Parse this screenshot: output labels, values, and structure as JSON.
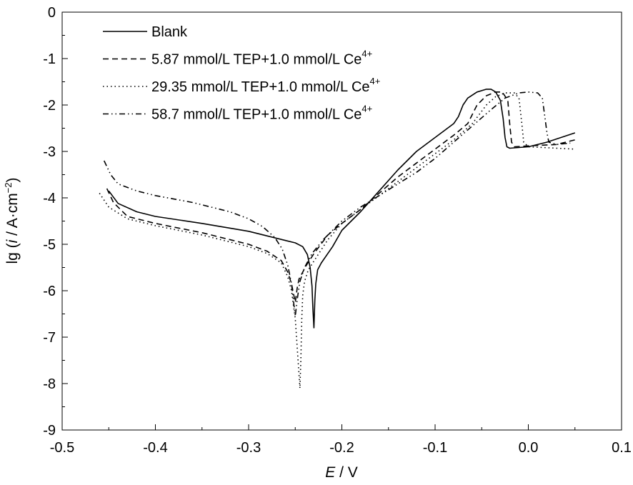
{
  "chart_data": {
    "type": "line",
    "title": "",
    "xlabel_var": "E",
    "xlabel_unit": " / V",
    "ylabel_prefix": "lg (",
    "ylabel_var": "i",
    "ylabel_unit": " / A·cm",
    "ylabel_exp": "−2",
    "ylabel_suffix": ")",
    "xlim": [
      -0.5,
      0.1
    ],
    "ylim": [
      -9,
      0
    ],
    "x_ticks": [
      -0.5,
      -0.4,
      -0.3,
      -0.2,
      -0.1,
      0.0,
      0.1
    ],
    "x_tick_labels": [
      "-0.5",
      "-0.4",
      "-0.3",
      "-0.2",
      "-0.1",
      "0.0",
      "0.1"
    ],
    "y_ticks": [
      0,
      -1,
      -2,
      -3,
      -4,
      -5,
      -6,
      -7,
      -8,
      -9
    ],
    "y_tick_labels": [
      "0",
      "-1",
      "-2",
      "-3",
      "-4",
      "-5",
      "-6",
      "-7",
      "-8",
      "-9"
    ],
    "grid": false,
    "legend_position": "top-left",
    "series": [
      {
        "name": "Blank",
        "name_sup": "",
        "style": "solid",
        "points": [
          [
            -0.45,
            -3.85
          ],
          [
            -0.44,
            -4.12
          ],
          [
            -0.42,
            -4.3
          ],
          [
            -0.4,
            -4.4
          ],
          [
            -0.35,
            -4.55
          ],
          [
            -0.3,
            -4.72
          ],
          [
            -0.28,
            -4.82
          ],
          [
            -0.26,
            -4.92
          ],
          [
            -0.25,
            -4.97
          ],
          [
            -0.242,
            -5.05
          ],
          [
            -0.237,
            -5.22
          ],
          [
            -0.234,
            -5.5
          ],
          [
            -0.232,
            -5.9
          ],
          [
            -0.231,
            -6.4
          ],
          [
            -0.23,
            -6.8
          ],
          [
            -0.229,
            -6.2
          ],
          [
            -0.228,
            -5.85
          ],
          [
            -0.226,
            -5.55
          ],
          [
            -0.222,
            -5.4
          ],
          [
            -0.21,
            -5.05
          ],
          [
            -0.2,
            -4.7
          ],
          [
            -0.18,
            -4.3
          ],
          [
            -0.16,
            -3.85
          ],
          [
            -0.14,
            -3.4
          ],
          [
            -0.12,
            -3.0
          ],
          [
            -0.1,
            -2.7
          ],
          [
            -0.08,
            -2.4
          ],
          [
            -0.075,
            -2.25
          ],
          [
            -0.07,
            -2.0
          ],
          [
            -0.065,
            -1.85
          ],
          [
            -0.055,
            -1.72
          ],
          [
            -0.045,
            -1.66
          ],
          [
            -0.04,
            -1.66
          ],
          [
            -0.035,
            -1.72
          ],
          [
            -0.03,
            -1.9
          ],
          [
            -0.027,
            -2.3
          ],
          [
            -0.025,
            -2.7
          ],
          [
            -0.023,
            -2.9
          ],
          [
            -0.02,
            -2.93
          ],
          [
            0.0,
            -2.9
          ],
          [
            0.02,
            -2.8
          ],
          [
            0.05,
            -2.6
          ]
        ]
      },
      {
        "name": "5.87 mmol/L TEP+1.0 mmol/L Ce",
        "name_sup": "4+",
        "style": "dashed",
        "points": [
          [
            -0.452,
            -3.8
          ],
          [
            -0.445,
            -4.1
          ],
          [
            -0.43,
            -4.4
          ],
          [
            -0.4,
            -4.55
          ],
          [
            -0.35,
            -4.75
          ],
          [
            -0.3,
            -5.0
          ],
          [
            -0.28,
            -5.15
          ],
          [
            -0.265,
            -5.35
          ],
          [
            -0.258,
            -5.6
          ],
          [
            -0.254,
            -5.85
          ],
          [
            -0.252,
            -6.05
          ],
          [
            -0.25,
            -6.25
          ],
          [
            -0.248,
            -5.95
          ],
          [
            -0.246,
            -5.75
          ],
          [
            -0.242,
            -5.6
          ],
          [
            -0.238,
            -5.45
          ],
          [
            -0.23,
            -5.2
          ],
          [
            -0.215,
            -4.8
          ],
          [
            -0.2,
            -4.55
          ],
          [
            -0.18,
            -4.25
          ],
          [
            -0.16,
            -3.9
          ],
          [
            -0.14,
            -3.55
          ],
          [
            -0.12,
            -3.25
          ],
          [
            -0.1,
            -2.95
          ],
          [
            -0.08,
            -2.65
          ],
          [
            -0.065,
            -2.4
          ],
          [
            -0.055,
            -2.0
          ],
          [
            -0.045,
            -1.8
          ],
          [
            -0.035,
            -1.72
          ],
          [
            -0.028,
            -1.72
          ],
          [
            -0.022,
            -1.9
          ],
          [
            -0.02,
            -2.4
          ],
          [
            -0.018,
            -2.8
          ],
          [
            -0.015,
            -2.9
          ],
          [
            0.0,
            -2.88
          ],
          [
            0.03,
            -2.85
          ],
          [
            0.05,
            -2.75
          ]
        ]
      },
      {
        "name": "29.35 mmol/L TEP+1.0 mmol/L Ce",
        "name_sup": "4+",
        "style": "dotted",
        "points": [
          [
            -0.46,
            -3.9
          ],
          [
            -0.45,
            -4.2
          ],
          [
            -0.43,
            -4.45
          ],
          [
            -0.4,
            -4.6
          ],
          [
            -0.35,
            -4.8
          ],
          [
            -0.3,
            -5.05
          ],
          [
            -0.28,
            -5.2
          ],
          [
            -0.265,
            -5.4
          ],
          [
            -0.258,
            -5.7
          ],
          [
            -0.254,
            -6.0
          ],
          [
            -0.252,
            -6.3
          ],
          [
            -0.25,
            -6.6
          ],
          [
            -0.248,
            -7.2
          ],
          [
            -0.246,
            -7.8
          ],
          [
            -0.245,
            -8.1
          ],
          [
            -0.244,
            -7.5
          ],
          [
            -0.243,
            -6.6
          ],
          [
            -0.242,
            -6.1
          ],
          [
            -0.24,
            -5.8
          ],
          [
            -0.236,
            -5.55
          ],
          [
            -0.228,
            -5.3
          ],
          [
            -0.215,
            -4.9
          ],
          [
            -0.2,
            -4.55
          ],
          [
            -0.18,
            -4.25
          ],
          [
            -0.16,
            -3.95
          ],
          [
            -0.14,
            -3.65
          ],
          [
            -0.12,
            -3.35
          ],
          [
            -0.1,
            -3.05
          ],
          [
            -0.08,
            -2.75
          ],
          [
            -0.06,
            -2.4
          ],
          [
            -0.045,
            -2.0
          ],
          [
            -0.035,
            -1.82
          ],
          [
            -0.025,
            -1.74
          ],
          [
            -0.015,
            -1.74
          ],
          [
            -0.01,
            -1.85
          ],
          [
            -0.007,
            -2.4
          ],
          [
            -0.005,
            -2.8
          ],
          [
            0.0,
            -2.9
          ],
          [
            0.02,
            -2.92
          ],
          [
            0.05,
            -2.95
          ]
        ]
      },
      {
        "name": "58.7 mmol/L TEP+1.0 mmol/L Ce",
        "name_sup": "4+",
        "style": "dashdotdot",
        "points": [
          [
            -0.455,
            -3.2
          ],
          [
            -0.448,
            -3.5
          ],
          [
            -0.44,
            -3.7
          ],
          [
            -0.42,
            -3.85
          ],
          [
            -0.4,
            -3.95
          ],
          [
            -0.36,
            -4.1
          ],
          [
            -0.32,
            -4.3
          ],
          [
            -0.3,
            -4.45
          ],
          [
            -0.285,
            -4.62
          ],
          [
            -0.272,
            -4.85
          ],
          [
            -0.264,
            -5.1
          ],
          [
            -0.258,
            -5.45
          ],
          [
            -0.254,
            -5.85
          ],
          [
            -0.252,
            -6.2
          ],
          [
            -0.25,
            -6.55
          ],
          [
            -0.248,
            -6.2
          ],
          [
            -0.245,
            -5.8
          ],
          [
            -0.24,
            -5.5
          ],
          [
            -0.232,
            -5.2
          ],
          [
            -0.22,
            -4.9
          ],
          [
            -0.2,
            -4.5
          ],
          [
            -0.18,
            -4.2
          ],
          [
            -0.16,
            -3.95
          ],
          [
            -0.14,
            -3.7
          ],
          [
            -0.12,
            -3.45
          ],
          [
            -0.1,
            -3.15
          ],
          [
            -0.08,
            -2.8
          ],
          [
            -0.06,
            -2.45
          ],
          [
            -0.04,
            -2.1
          ],
          [
            -0.025,
            -1.85
          ],
          [
            -0.01,
            -1.74
          ],
          [
            0.0,
            -1.72
          ],
          [
            0.01,
            -1.74
          ],
          [
            0.015,
            -1.85
          ],
          [
            0.018,
            -2.3
          ],
          [
            0.02,
            -2.6
          ],
          [
            0.022,
            -2.8
          ],
          [
            0.03,
            -2.85
          ],
          [
            0.045,
            -2.82
          ]
        ]
      }
    ]
  }
}
